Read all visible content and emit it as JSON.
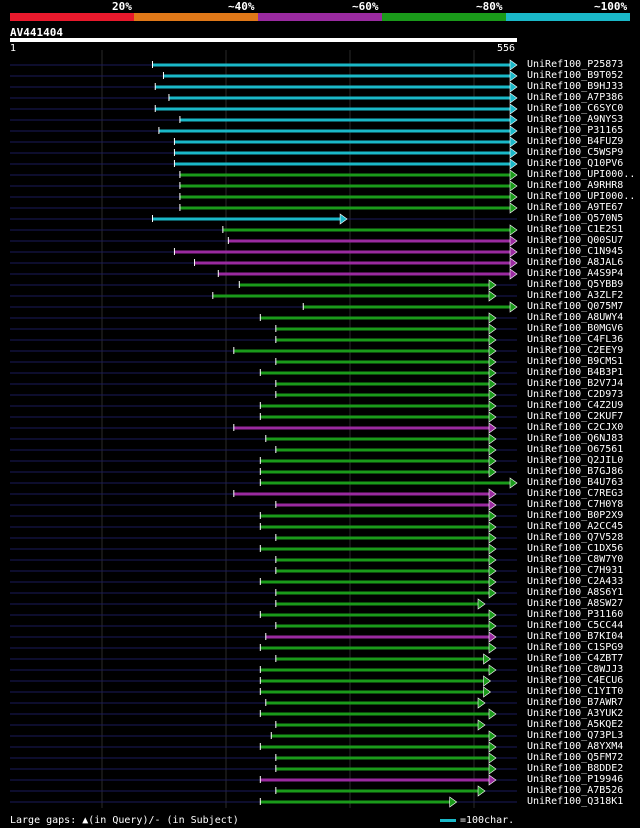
{
  "legend": {
    "colors": [
      "#e8192c",
      "#e07818",
      "#9a2aa0",
      "#1a9a1a",
      "#1ab8c8"
    ],
    "labels": [
      "20%",
      "~40%",
      "~60%",
      "~80%",
      "~100%"
    ]
  },
  "query": {
    "id": "AV441404",
    "start": "1",
    "end": "556",
    "length": 556
  },
  "hits": [
    {
      "name": "UniRef100_P25873",
      "start": 157,
      "end": 556,
      "identity": 100
    },
    {
      "name": "UniRef100_B9T052",
      "start": 169,
      "end": 556,
      "identity": 100
    },
    {
      "name": "UniRef100_B9HJ33",
      "start": 160,
      "end": 556,
      "identity": 100
    },
    {
      "name": "UniRef100_A7P386",
      "start": 175,
      "end": 556,
      "identity": 100
    },
    {
      "name": "UniRef100_C6SYC0",
      "start": 160,
      "end": 556,
      "identity": 100
    },
    {
      "name": "UniRef100_A9NYS3",
      "start": 187,
      "end": 556,
      "identity": 100
    },
    {
      "name": "UniRef100_P31165",
      "start": 164,
      "end": 556,
      "identity": 100
    },
    {
      "name": "UniRef100_B4FUZ9",
      "start": 181,
      "end": 556,
      "identity": 100
    },
    {
      "name": "UniRef100_C5WSP9",
      "start": 181,
      "end": 556,
      "identity": 100
    },
    {
      "name": "UniRef100_Q10PV6",
      "start": 181,
      "end": 556,
      "identity": 100
    },
    {
      "name": "UniRef100_UPI000..",
      "start": 187,
      "end": 556,
      "identity": 80
    },
    {
      "name": "UniRef100_A9RHR8",
      "start": 187,
      "end": 556,
      "identity": 80
    },
    {
      "name": "UniRef100_UPI000..",
      "start": 187,
      "end": 556,
      "identity": 80
    },
    {
      "name": "UniRef100_A9TE67",
      "start": 187,
      "end": 556,
      "identity": 80
    },
    {
      "name": "UniRef100_Q570N5",
      "start": 157,
      "end": 370,
      "identity": 100
    },
    {
      "name": "UniRef100_C1E2S1",
      "start": 234,
      "end": 556,
      "identity": 80
    },
    {
      "name": "UniRef100_Q00SU7",
      "start": 240,
      "end": 556,
      "identity": 60
    },
    {
      "name": "UniRef100_C1N945",
      "start": 181,
      "end": 556,
      "identity": 60
    },
    {
      "name": "UniRef100_A8JAL6",
      "start": 203,
      "end": 556,
      "identity": 60
    },
    {
      "name": "UniRef100_A4S9P4",
      "start": 229,
      "end": 556,
      "identity": 60
    },
    {
      "name": "UniRef100_Q5YBB9",
      "start": 252,
      "end": 533,
      "identity": 80
    },
    {
      "name": "UniRef100_A3ZLF2",
      "start": 223,
      "end": 533,
      "identity": 80
    },
    {
      "name": "UniRef100_Q075M7",
      "start": 322,
      "end": 556,
      "identity": 80
    },
    {
      "name": "UniRef100_A8UWY4",
      "start": 275,
      "end": 533,
      "identity": 80
    },
    {
      "name": "UniRef100_B0MGV6",
      "start": 292,
      "end": 533,
      "identity": 80
    },
    {
      "name": "UniRef100_C4FL36",
      "start": 292,
      "end": 533,
      "identity": 80
    },
    {
      "name": "UniRef100_C2EEY9",
      "start": 246,
      "end": 533,
      "identity": 80
    },
    {
      "name": "UniRef100_B9CMS1",
      "start": 292,
      "end": 533,
      "identity": 80
    },
    {
      "name": "UniRef100_B4B3P1",
      "start": 275,
      "end": 533,
      "identity": 80
    },
    {
      "name": "UniRef100_B2V7J4",
      "start": 292,
      "end": 533,
      "identity": 80
    },
    {
      "name": "UniRef100_C2D973",
      "start": 292,
      "end": 533,
      "identity": 80
    },
    {
      "name": "UniRef100_C4Z2U9",
      "start": 275,
      "end": 533,
      "identity": 80
    },
    {
      "name": "UniRef100_C2KUF7",
      "start": 275,
      "end": 533,
      "identity": 80
    },
    {
      "name": "UniRef100_C2CJX0",
      "start": 246,
      "end": 533,
      "identity": 60
    },
    {
      "name": "UniRef100_Q6NJ83",
      "start": 281,
      "end": 533,
      "identity": 80
    },
    {
      "name": "UniRef100_O67561",
      "start": 292,
      "end": 533,
      "identity": 80
    },
    {
      "name": "UniRef100_Q2JIL0",
      "start": 275,
      "end": 533,
      "identity": 80
    },
    {
      "name": "UniRef100_B7GJ86",
      "start": 275,
      "end": 533,
      "identity": 80
    },
    {
      "name": "UniRef100_B4U763",
      "start": 275,
      "end": 556,
      "identity": 80
    },
    {
      "name": "UniRef100_C7REG3",
      "start": 246,
      "end": 533,
      "identity": 60
    },
    {
      "name": "UniRef100_C7H0Y8",
      "start": 292,
      "end": 533,
      "identity": 60
    },
    {
      "name": "UniRef100_B0P2X9",
      "start": 275,
      "end": 533,
      "identity": 80
    },
    {
      "name": "UniRef100_A2CC45",
      "start": 275,
      "end": 533,
      "identity": 80
    },
    {
      "name": "UniRef100_Q7V528",
      "start": 292,
      "end": 533,
      "identity": 80
    },
    {
      "name": "UniRef100_C1DX56",
      "start": 275,
      "end": 533,
      "identity": 80
    },
    {
      "name": "UniRef100_C8W7Y0",
      "start": 292,
      "end": 533,
      "identity": 80
    },
    {
      "name": "UniRef100_C7H931",
      "start": 292,
      "end": 533,
      "identity": 80
    },
    {
      "name": "UniRef100_C2A433",
      "start": 275,
      "end": 533,
      "identity": 80
    },
    {
      "name": "UniRef100_A8S6Y1",
      "start": 292,
      "end": 533,
      "identity": 80
    },
    {
      "name": "UniRef100_A8SW27",
      "start": 292,
      "end": 521,
      "identity": 80
    },
    {
      "name": "UniRef100_P31160",
      "start": 275,
      "end": 533,
      "identity": 80
    },
    {
      "name": "UniRef100_C5CC44",
      "start": 292,
      "end": 533,
      "identity": 80
    },
    {
      "name": "UniRef100_B7KI04",
      "start": 281,
      "end": 533,
      "identity": 60
    },
    {
      "name": "UniRef100_C1SPG9",
      "start": 275,
      "end": 533,
      "identity": 80
    },
    {
      "name": "UniRef100_C4ZBT7",
      "start": 292,
      "end": 527,
      "identity": 80
    },
    {
      "name": "UniRef100_C8WJJ3",
      "start": 275,
      "end": 533,
      "identity": 80
    },
    {
      "name": "UniRef100_C4ECU6",
      "start": 275,
      "end": 527,
      "identity": 80
    },
    {
      "name": "UniRef100_C1YIT0",
      "start": 275,
      "end": 527,
      "identity": 80
    },
    {
      "name": "UniRef100_B7AWR7",
      "start": 281,
      "end": 521,
      "identity": 80
    },
    {
      "name": "UniRef100_A3YUK2",
      "start": 275,
      "end": 533,
      "identity": 80
    },
    {
      "name": "UniRef100_A5KQE2",
      "start": 292,
      "end": 521,
      "identity": 80
    },
    {
      "name": "UniRef100_Q73PL3",
      "start": 287,
      "end": 533,
      "identity": 80
    },
    {
      "name": "UniRef100_A8YXM4",
      "start": 275,
      "end": 533,
      "identity": 80
    },
    {
      "name": "UniRef100_Q5FM72",
      "start": 292,
      "end": 533,
      "identity": 80
    },
    {
      "name": "UniRef100_B8DDE2",
      "start": 292,
      "end": 533,
      "identity": 80
    },
    {
      "name": "UniRef100_P19946",
      "start": 275,
      "end": 533,
      "identity": 60
    },
    {
      "name": "UniRef100_A7B526",
      "start": 292,
      "end": 521,
      "identity": 80
    },
    {
      "name": "UniRef100_Q318K1",
      "start": 275,
      "end": 490,
      "identity": 80
    }
  ],
  "footer": {
    "large_gaps": "Large gaps: ▲(in Query)/- (in Subject)",
    "scale": "=100char."
  }
}
